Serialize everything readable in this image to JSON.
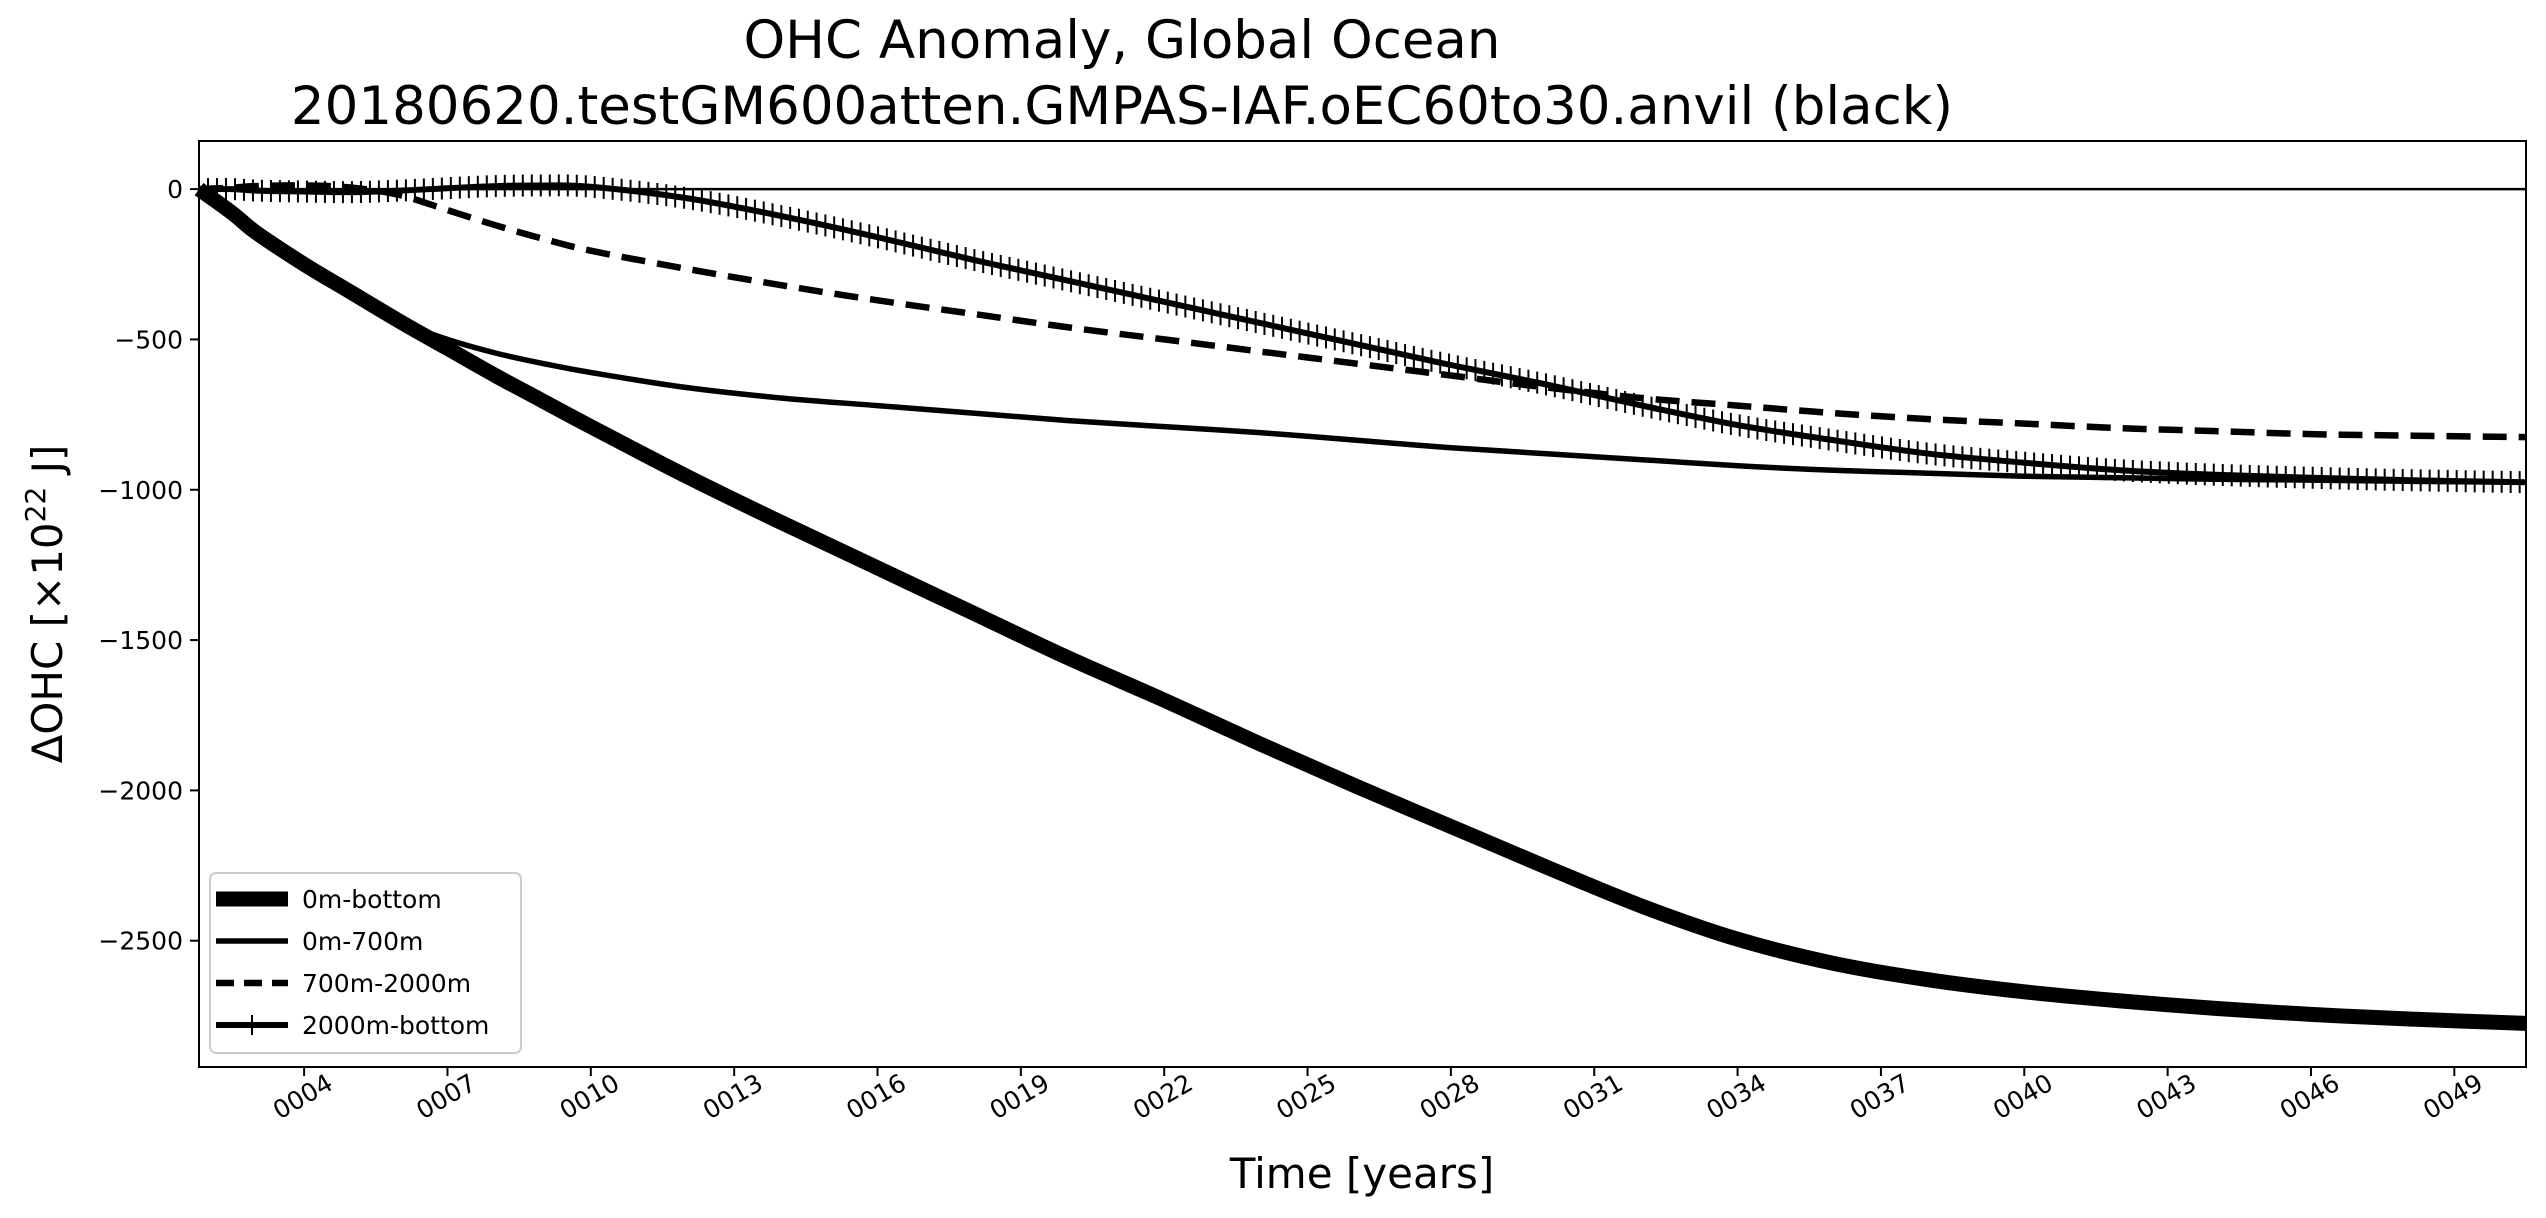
{
  "chart_data": {
    "type": "line",
    "title_lines": [
      "OHC Anomaly, Global Ocean",
      "20180620.testGM600atten.GMPAS-IAF.oEC60to30.anvil (black)"
    ],
    "xlabel": "Time [years]",
    "ylabel_main": "ΔOHC [×10",
    "ylabel_exp": "22",
    "ylabel_unit": " J]",
    "xlim": [
      1.8,
      50.5
    ],
    "ylim": [
      -2920,
      160
    ],
    "x_ticks": [
      4,
      7,
      10,
      13,
      16,
      19,
      22,
      25,
      28,
      31,
      34,
      37,
      40,
      43,
      46,
      49
    ],
    "x_tick_labels": [
      "0004",
      "0007",
      "0010",
      "0013",
      "0016",
      "0019",
      "0022",
      "0025",
      "0028",
      "0031",
      "0034",
      "0037",
      "0040",
      "0043",
      "0046",
      "0049"
    ],
    "y_ticks": [
      0,
      -500,
      -1000,
      -1500,
      -2000,
      -2500
    ],
    "y_tick_labels": [
      "0",
      "−500",
      "−1000",
      "−1500",
      "−2000",
      "−2500"
    ],
    "zero_line": 0,
    "legend_position": "lower-left",
    "color": "#000000",
    "series": [
      {
        "name": "0m-bottom",
        "style": "thick",
        "x": [
          1.8,
          2.5,
          3,
          4,
          5,
          6,
          7,
          8,
          9,
          10,
          12,
          14,
          16,
          18,
          20,
          22,
          24,
          26,
          28,
          30,
          32,
          34,
          36,
          38,
          40,
          42,
          44,
          46,
          48,
          50.5
        ],
        "y": [
          0,
          -80,
          -145,
          -250,
          -345,
          -440,
          -530,
          -620,
          -705,
          -790,
          -955,
          -1110,
          -1260,
          -1410,
          -1560,
          -1700,
          -1845,
          -1985,
          -2120,
          -2255,
          -2385,
          -2495,
          -2575,
          -2630,
          -2670,
          -2700,
          -2725,
          -2745,
          -2760,
          -2775
        ]
      },
      {
        "name": "0m-700m",
        "style": "solid",
        "x": [
          1.8,
          2.5,
          3,
          4,
          5,
          6,
          7,
          8,
          9,
          10,
          12,
          14,
          16,
          18,
          20,
          22,
          24,
          26,
          28,
          30,
          32,
          34,
          36,
          38,
          40,
          42,
          44,
          46,
          48,
          50.5
        ],
        "y": [
          0,
          -80,
          -145,
          -255,
          -350,
          -440,
          -500,
          -545,
          -580,
          -610,
          -660,
          -695,
          -720,
          -745,
          -770,
          -790,
          -810,
          -835,
          -860,
          -880,
          -900,
          -920,
          -935,
          -945,
          -955,
          -960,
          -965,
          -968,
          -972,
          -975
        ]
      },
      {
        "name": "700m-2000m",
        "style": "dashed",
        "x": [
          1.8,
          2.5,
          3,
          4,
          5,
          6,
          7,
          8,
          9,
          10,
          12,
          14,
          16,
          18,
          20,
          22,
          24,
          26,
          28,
          30,
          32,
          34,
          36,
          38,
          40,
          42,
          44,
          46,
          48,
          50.5
        ],
        "y": [
          0,
          5,
          10,
          12,
          5,
          -20,
          -70,
          -120,
          -165,
          -205,
          -265,
          -320,
          -370,
          -415,
          -460,
          -500,
          -540,
          -580,
          -620,
          -660,
          -695,
          -720,
          -745,
          -765,
          -780,
          -795,
          -805,
          -815,
          -820,
          -825
        ]
      },
      {
        "name": "2000m-bottom",
        "style": "plus",
        "x": [
          1.8,
          2.5,
          3,
          4,
          5,
          6,
          7,
          8,
          9,
          10,
          12,
          14,
          16,
          18,
          20,
          22,
          24,
          26,
          28,
          30,
          32,
          34,
          36,
          38,
          40,
          42,
          44,
          46,
          48,
          50.5
        ],
        "y": [
          0,
          0,
          -5,
          -8,
          -10,
          -5,
          3,
          10,
          12,
          8,
          -30,
          -90,
          -160,
          -235,
          -305,
          -375,
          -445,
          -515,
          -585,
          -650,
          -720,
          -785,
          -835,
          -880,
          -910,
          -935,
          -950,
          -960,
          -968,
          -975
        ]
      }
    ]
  }
}
